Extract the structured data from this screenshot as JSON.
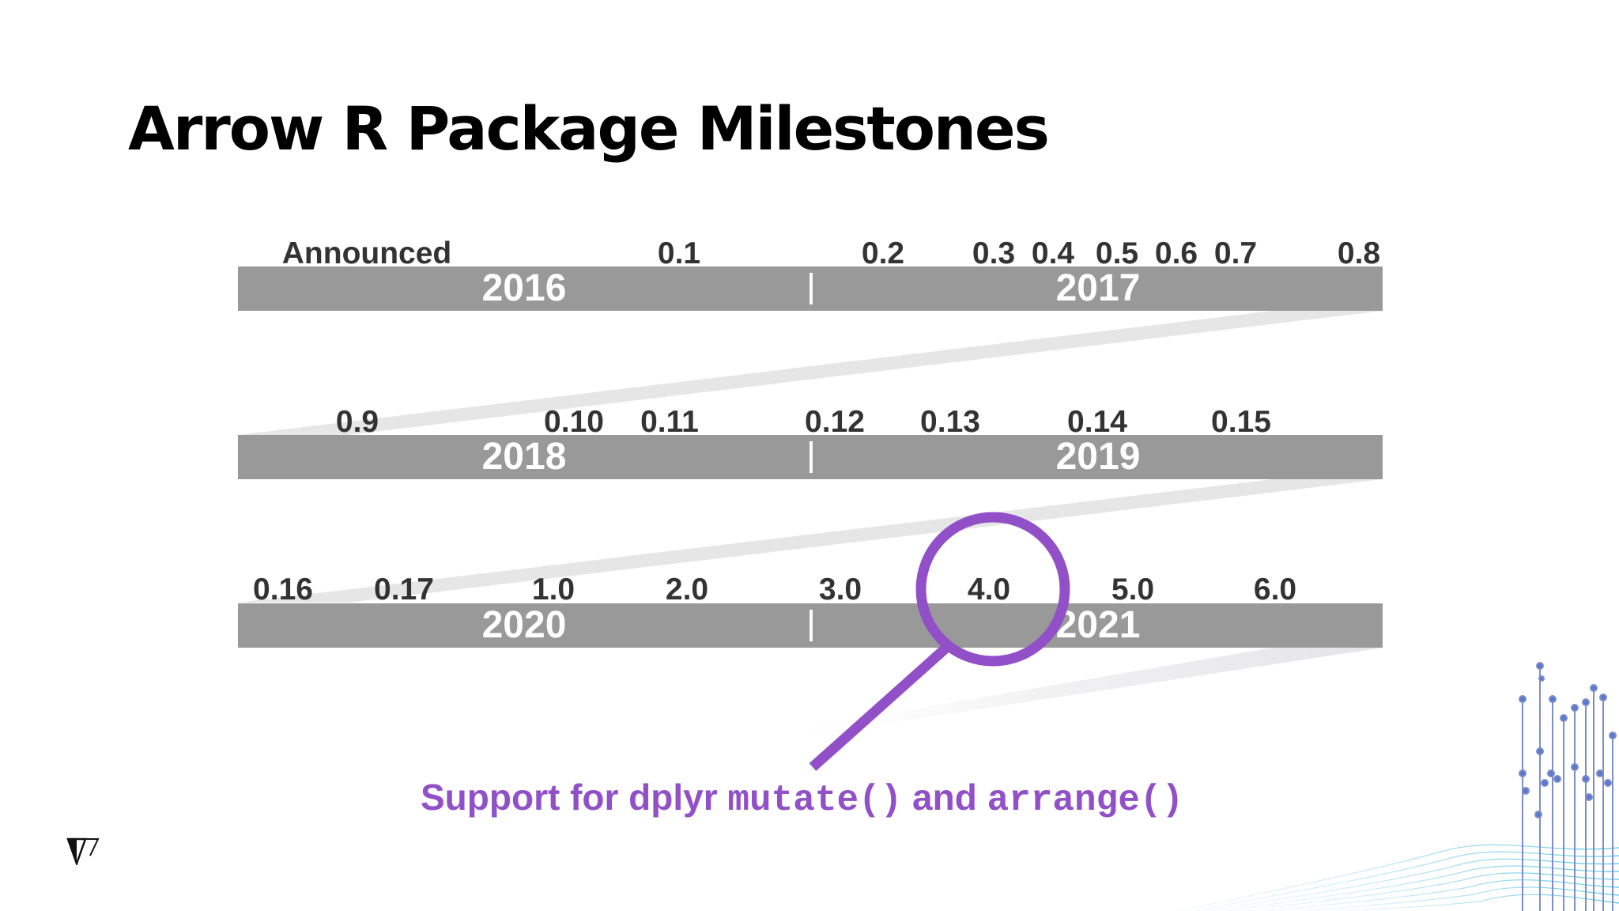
{
  "slide": {
    "title": "Arrow R Package Milestones"
  },
  "colors": {
    "bar": "#999999",
    "band": "#e6e6e6",
    "milestone_text": "#333333",
    "highlight": "#9150c8",
    "title": "#000000"
  },
  "rows": [
    {
      "year_left": "2016",
      "year_right": "2017",
      "milestones": [
        "Announced",
        "0.1",
        "0.2",
        "0.3",
        "0.4",
        "0.5",
        "0.6",
        "0.7",
        "0.8"
      ]
    },
    {
      "year_left": "2018",
      "year_right": "2019",
      "milestones": [
        "0.9",
        "0.10",
        "0.11",
        "0.12",
        "0.13",
        "0.14",
        "0.15"
      ]
    },
    {
      "year_left": "2020",
      "year_right": "2021",
      "milestones": [
        "0.16",
        "0.17",
        "1.0",
        "2.0",
        "3.0",
        "4.0",
        "5.0",
        "6.0"
      ]
    }
  ],
  "highlight": {
    "target": "4.0",
    "caption_parts": [
      "Support for dplyr ",
      "mutate()",
      " and ",
      "arrange()"
    ]
  },
  "icons": {
    "logo": "voltron-data-logo",
    "magnifier": "magnifying-glass-icon",
    "decoration": "circuit-lines-decoration"
  }
}
